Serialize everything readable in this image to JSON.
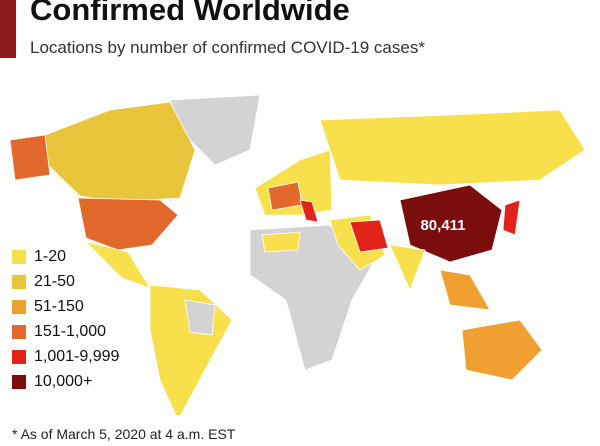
{
  "header": {
    "title": "Confirmed Worldwide",
    "subtitle": "Locations by number of confirmed COVID-19 cases*"
  },
  "legend": [
    {
      "label": "1-20",
      "color": "#f7e04b"
    },
    {
      "label": "21-50",
      "color": "#e8c53a"
    },
    {
      "label": "51-150",
      "color": "#f0a030"
    },
    {
      "label": "151-1,000",
      "color": "#e2682b"
    },
    {
      "label": "1,001-9,999",
      "color": "#e2231a"
    },
    {
      "label": "10,000+",
      "color": "#7b0d0d"
    }
  ],
  "map": {
    "china_label": "80,411"
  },
  "footnote": "* As of March 5, 2020 at 4 a.m. EST"
}
